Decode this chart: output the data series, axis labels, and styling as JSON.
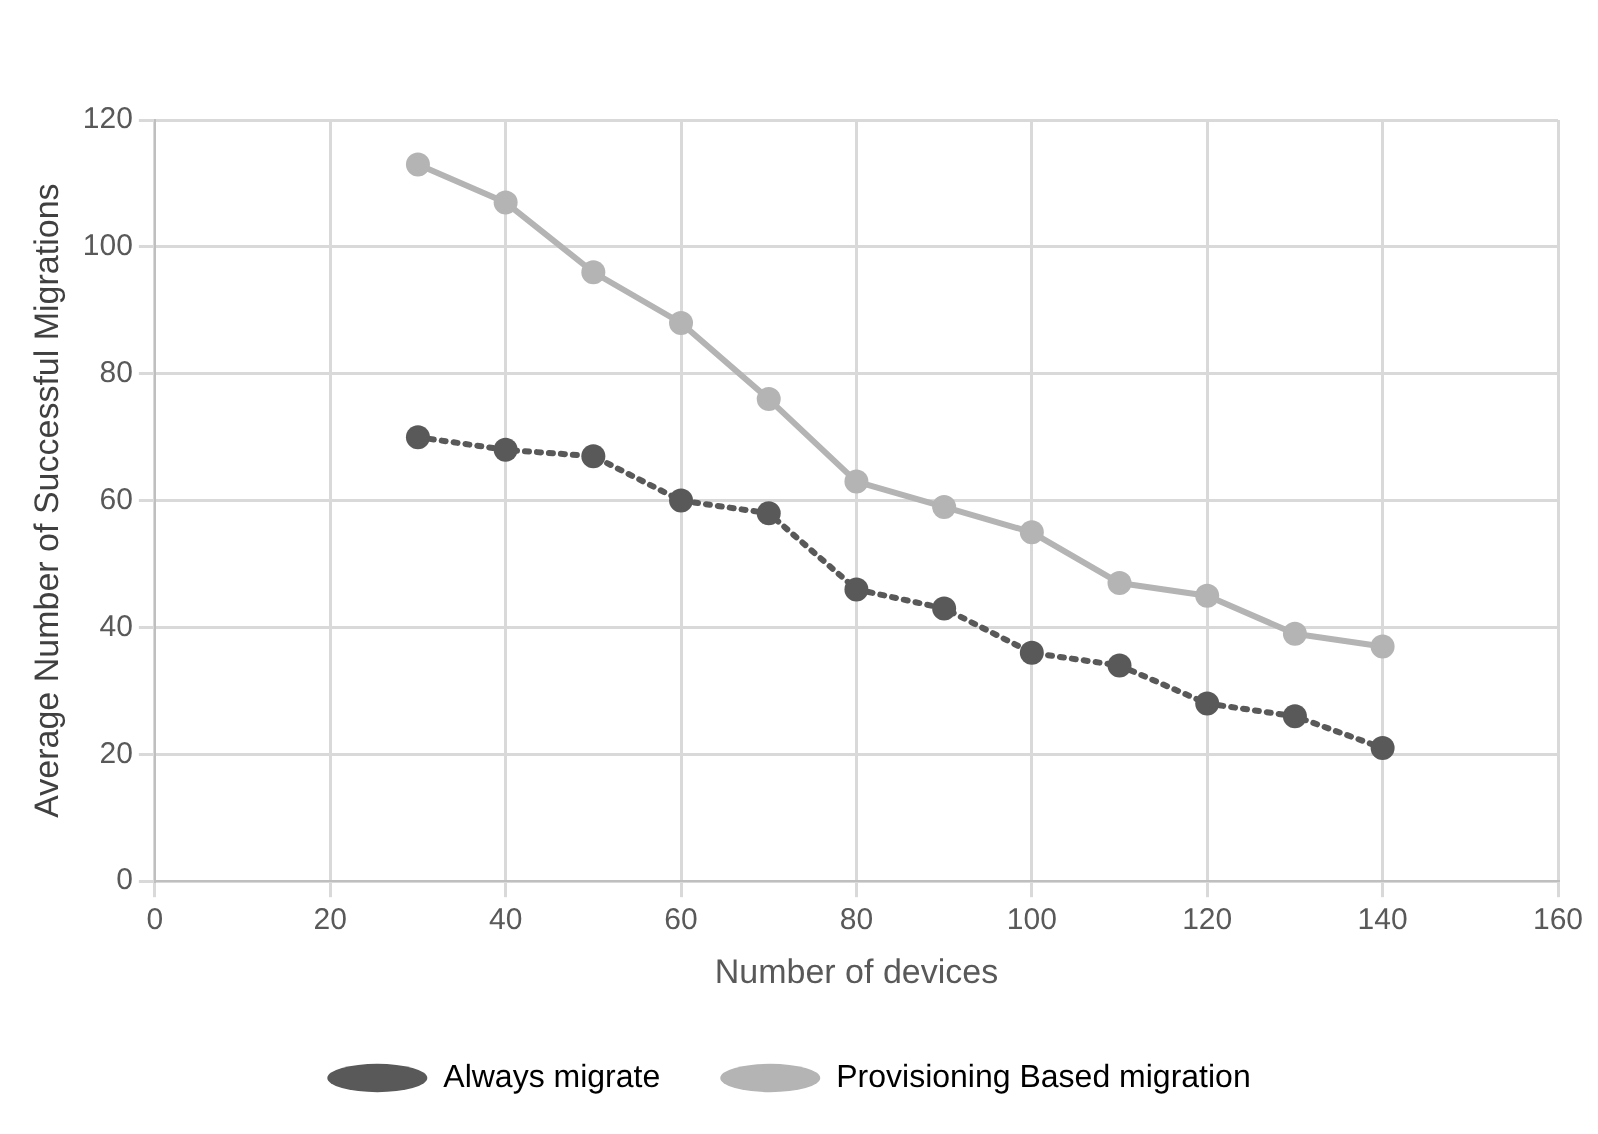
{
  "chart_data": {
    "type": "line",
    "xlabel": "Number of devices",
    "ylabel": "Average Number of Successful Migrations",
    "x": [
      30,
      40,
      50,
      60,
      70,
      80,
      90,
      100,
      110,
      120,
      130,
      140
    ],
    "series": [
      {
        "name": "Always migrate",
        "color": "#595959",
        "line_style": "dotted",
        "values": [
          70,
          68,
          67,
          60,
          58,
          46,
          43,
          36,
          34,
          28,
          26,
          21
        ]
      },
      {
        "name": "Provisioning Based migration",
        "color": "#b4b4b4",
        "line_style": "solid",
        "values": [
          113,
          107,
          96,
          88,
          76,
          63,
          59,
          55,
          47,
          45,
          39,
          37
        ]
      }
    ],
    "xlim": [
      0,
      160
    ],
    "xticks": [
      0,
      20,
      40,
      60,
      80,
      100,
      120,
      140,
      160
    ],
    "ylim": [
      0,
      120
    ],
    "yticks": [
      0,
      20,
      40,
      60,
      80,
      100,
      120
    ],
    "grid": true,
    "legend": "bottom",
    "marker": "circle"
  }
}
